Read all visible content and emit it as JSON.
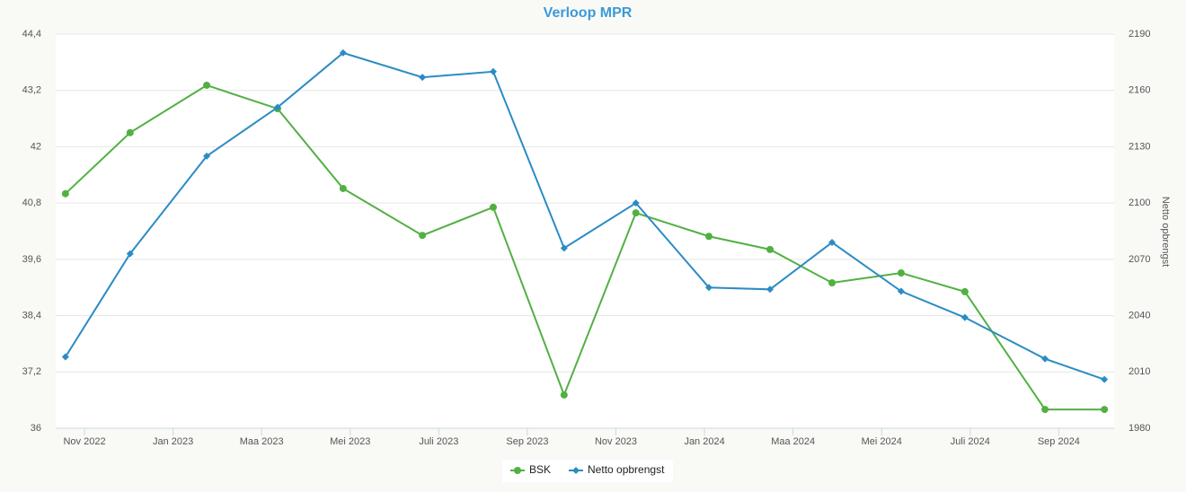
{
  "chart_data": {
    "type": "line",
    "title": "Verloop MPR",
    "y2_label": "Netto opbrengst",
    "x": [
      -0.43,
      1.03,
      2.76,
      4.36,
      5.84,
      7.63,
      9.23,
      10.83,
      12.45,
      14.1,
      15.48,
      16.88,
      18.44,
      19.88,
      21.69,
      23.03
    ],
    "xlim": [
      -0.65,
      23.25
    ],
    "xticks": [
      {
        "value": 0,
        "label": "Nov 2022"
      },
      {
        "value": 2,
        "label": "Jan 2023"
      },
      {
        "value": 4,
        "label": "Maa 2023"
      },
      {
        "value": 6,
        "label": "Mei 2023"
      },
      {
        "value": 8,
        "label": "Juli 2023"
      },
      {
        "value": 10,
        "label": "Sep 2023"
      },
      {
        "value": 12,
        "label": "Nov 2023"
      },
      {
        "value": 14,
        "label": "Jan 2024"
      },
      {
        "value": 16,
        "label": "Maa 2024"
      },
      {
        "value": 18,
        "label": "Mei 2024"
      },
      {
        "value": 20,
        "label": "Juli 2024"
      },
      {
        "value": 22,
        "label": "Sep 2024"
      }
    ],
    "ylim": [
      36,
      44.4
    ],
    "yticks": [
      36,
      {
        "value": 37.2,
        "label": "37,2"
      },
      {
        "value": 38.4,
        "label": "38,4"
      },
      {
        "value": 39.6,
        "label": "39,6"
      },
      {
        "value": 40.8,
        "label": "40,8"
      },
      42,
      {
        "value": 43.2,
        "label": "43,2"
      },
      {
        "value": 44.4,
        "label": "44,4"
      }
    ],
    "y2lim": [
      1980,
      2190
    ],
    "y2ticks": [
      1980,
      2010,
      2040,
      2070,
      2100,
      2130,
      2160,
      2190
    ],
    "grid": true,
    "legend": "bottom",
    "series": [
      {
        "name": "BSK",
        "color": "#52b043",
        "marker": "circle",
        "axis": "y",
        "values": [
          41.0,
          42.3,
          43.31,
          42.81,
          41.11,
          40.11,
          40.71,
          36.71,
          40.59,
          40.09,
          39.81,
          39.1,
          39.31,
          38.91,
          36.4,
          36.4
        ]
      },
      {
        "name": "Netto opbrengst",
        "color": "#2b8cc4",
        "marker": "diamond",
        "axis": "y2",
        "values": [
          2018,
          2073,
          2125,
          2151,
          2180,
          2167,
          2170,
          2076,
          2100,
          2055,
          2054,
          2079,
          2053,
          2039,
          2017,
          2006
        ]
      }
    ]
  }
}
